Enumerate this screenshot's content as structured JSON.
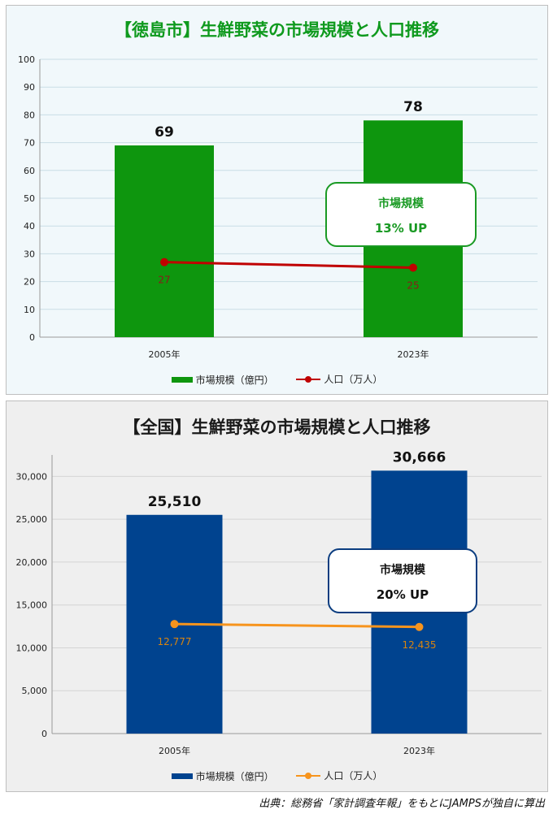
{
  "chart_data": [
    {
      "type": "bar",
      "title": "【徳島市】生鮮野菜の市場規模と人口推移",
      "categories": [
        "2005年",
        "2023年"
      ],
      "ylim": [
        0,
        100
      ],
      "yticks": [
        "0",
        "10",
        "20",
        "30",
        "40",
        "50",
        "60",
        "70",
        "80",
        "90",
        "100"
      ],
      "grid": true,
      "legend_position": "bottom",
      "series": [
        {
          "name": "市場規模（億円）",
          "type": "bar",
          "values": [
            69,
            78
          ],
          "labels": [
            "69",
            "78"
          ],
          "color": "#0e960e"
        },
        {
          "name": "人口（万人）",
          "type": "line",
          "values": [
            27,
            25
          ],
          "labels": [
            "27",
            "25"
          ],
          "color": "#c00000",
          "label_color": "#8b1a1a"
        }
      ],
      "annotation": {
        "line1": "市場規模",
        "line2": "13% UP"
      }
    },
    {
      "type": "bar",
      "title": "【全国】生鮮野菜の市場規模と人口推移",
      "categories": [
        "2005年",
        "2023年"
      ],
      "ylim": [
        0,
        32500
      ],
      "yticks": [
        "0",
        "5,000",
        "10,000",
        "15,000",
        "20,000",
        "25,000",
        "30,000"
      ],
      "grid": true,
      "legend_position": "bottom",
      "series": [
        {
          "name": "市場規模（億円）",
          "type": "bar",
          "values": [
            25510,
            30666
          ],
          "labels": [
            "25,510",
            "30,666"
          ],
          "color": "#00438f"
        },
        {
          "name": "人口（万人）",
          "type": "line",
          "values": [
            12777,
            12435
          ],
          "labels": [
            "12,777",
            "12,435"
          ],
          "color": "#f7941d",
          "label_color": "#d8850f"
        }
      ],
      "annotation": {
        "line1": "市場規模",
        "line2": "20% UP"
      }
    }
  ],
  "source": "出典：総務省「家計調査年報」をもとにJAMPSが独自に算出"
}
